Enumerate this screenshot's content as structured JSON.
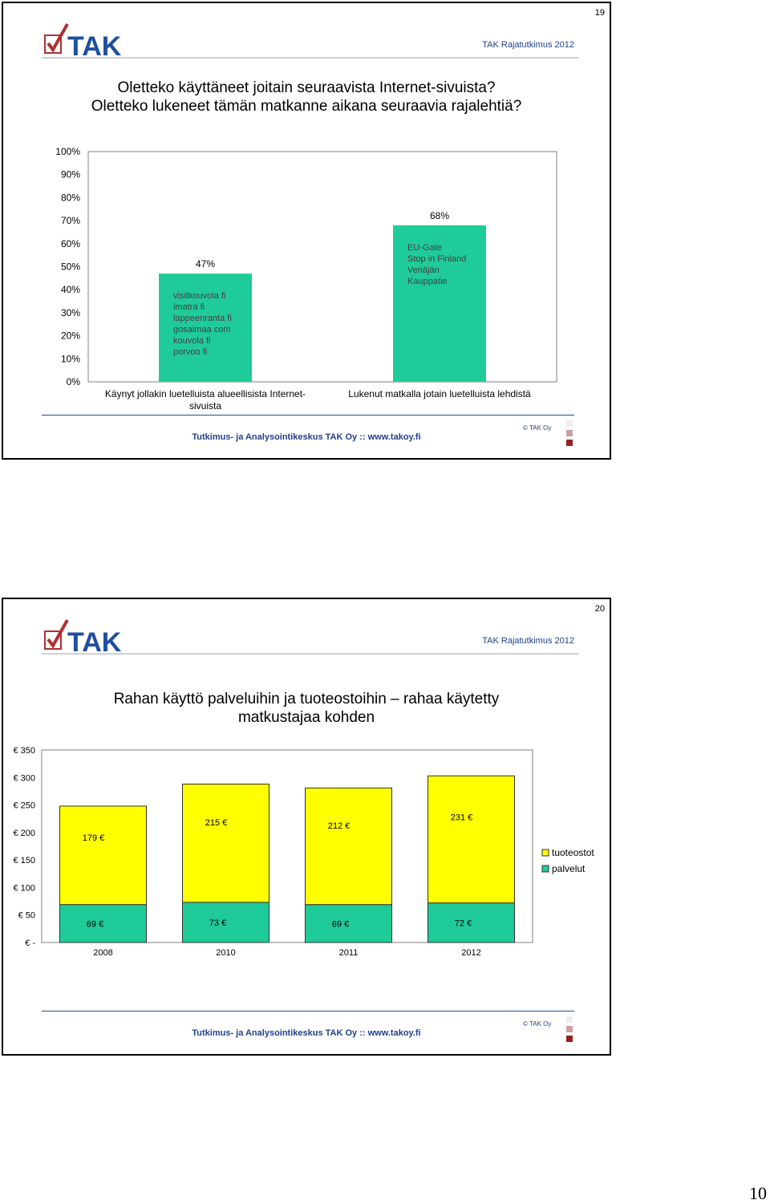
{
  "page_number": "10",
  "slides": [
    {
      "number": "19",
      "report": "TAK Rajatutkimus 2012",
      "title_lines": [
        "Oletteko käyttäneet joitain seuraavista Internet-sivuista?",
        "Oletteko lukeneet tämän matkanne aikana seuraavia rajalehtiä?"
      ],
      "footer": "Tutkimus- ja Analysointikeskus TAK Oy   ::   www.takoy.fi",
      "copyright": "© TAK Oy"
    },
    {
      "number": "20",
      "report": "TAK Rajatutkimus 2012",
      "title_lines": [
        "Rahan käyttö palveluihin ja tuoteostoihin – rahaa käytetty",
        "matkustajaa kohden"
      ],
      "footer": "Tutkimus- ja Analysointikeskus TAK Oy   ::   www.takoy.fi",
      "copyright": "© TAK Oy"
    }
  ],
  "logo_text": "TAK",
  "chart_data": [
    {
      "type": "bar",
      "categories": [
        "Käynyt jollakin luetelluista alueellisista Internet-sivuista",
        "Lukenut matkalla jotain luetelluista lehdistä"
      ],
      "category_lines": [
        [
          "Käynyt jollakin luetelluista alueellisista Internet-",
          "sivuista"
        ],
        [
          "Lukenut matkalla jotain luetelluista lehdistä"
        ]
      ],
      "values": [
        47,
        68
      ],
      "value_labels": [
        "47%",
        "68%"
      ],
      "bar_annotations": [
        [
          "visitkouvola fi",
          "imatra fi",
          "lappeenranta fi",
          "gosaimaa com",
          "kouvola fi",
          "porvoo fi"
        ],
        [
          "EU-Gate",
          "Stop in Finland",
          "Venäjän",
          "Kauppatie"
        ]
      ],
      "ylim": [
        0,
        100
      ],
      "yticks": [
        "0%",
        "10%",
        "20%",
        "30%",
        "40%",
        "50%",
        "60%",
        "70%",
        "80%",
        "90%",
        "100%"
      ],
      "bar_color": "#1fcc99"
    },
    {
      "type": "bar",
      "stacked": true,
      "categories": [
        "2008",
        "2010",
        "2011",
        "2012"
      ],
      "series": [
        {
          "name": "palvelut",
          "values": [
            69,
            73,
            69,
            72
          ],
          "labels": [
            "69 €",
            "73 €",
            "69 €",
            "72 €"
          ],
          "color": "#1fcc99"
        },
        {
          "name": "tuoteostot",
          "values": [
            179,
            215,
            212,
            231
          ],
          "labels": [
            "179 €",
            "215 €",
            "212 €",
            "231 €"
          ],
          "color": "#ffff00"
        }
      ],
      "ylim": [
        0,
        350
      ],
      "yticks": [
        "€ -",
        "€ 50",
        "€ 100",
        "€ 150",
        "€ 200",
        "€ 250",
        "€ 300",
        "€ 350"
      ],
      "legend": "right"
    }
  ]
}
